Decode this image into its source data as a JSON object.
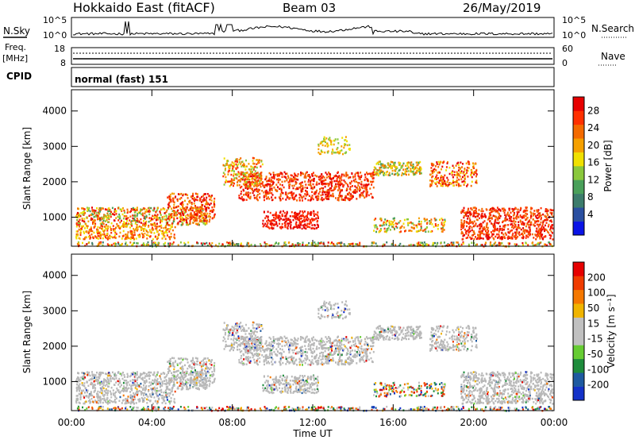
{
  "header": {
    "radar": "Hokkaido East (fitACF)",
    "beam": "Beam 03",
    "date": "26/May/2019"
  },
  "noise_panel": {
    "left_label": "N.Sky",
    "right_label": "N.Search",
    "left_ticks": [
      "10^5",
      "10^0"
    ],
    "right_ticks": [
      "10^5",
      "10^0"
    ]
  },
  "freq_panel": {
    "left_label_1": "Freq.",
    "left_label_2": "[MHz]",
    "right_label": "Nave",
    "left_ticks": [
      "18",
      "8"
    ],
    "right_ticks": [
      "60",
      "0"
    ]
  },
  "cpid_panel": {
    "label": "CPID",
    "program": "normal (fast) 151"
  },
  "colors": {
    "power_scale": [
      "#0a14e6",
      "#2a4fa0",
      "#3c7c6c",
      "#4aa05a",
      "#8ac83c",
      "#f0e000",
      "#f5a000",
      "#f46a00",
      "#ff3000",
      "#e60000"
    ],
    "velocity_scale": [
      "#1432c8",
      "#1e5aa0",
      "#1e8c3c",
      "#66cc33",
      "#c0c0c0",
      "#c0c0c0",
      "#f0b400",
      "#f57800",
      "#f03c00",
      "#e60000"
    ],
    "ground_scatter": "#b8b8b8"
  },
  "chart_data": [
    {
      "type": "heatmap",
      "name_hint": "power",
      "ylabel": "Slant Range [km]",
      "yticks": [
        "4000",
        "3000",
        "2000",
        "1000"
      ],
      "ylim": [
        180,
        4600
      ],
      "colorbar_label": "Power [dB]",
      "colorbar_ticks": [
        "28",
        "24",
        "20",
        "16",
        "12",
        "8",
        "4"
      ],
      "colorbar_range": [
        0,
        32
      ]
    },
    {
      "type": "heatmap",
      "name_hint": "velocity",
      "ylabel": "Slant Range [km]",
      "yticks": [
        "4000",
        "3000",
        "2000",
        "1000"
      ],
      "ylim": [
        180,
        4600
      ],
      "xlabel": "Time UT",
      "xticks": [
        "00:00",
        "04:00",
        "08:00",
        "12:00",
        "16:00",
        "20:00",
        "00:00"
      ],
      "colorbar_label": "Velocity [m s⁻¹]",
      "colorbar_ticks": [
        "200",
        "100",
        "50",
        "15",
        "-15",
        "-50",
        "-100",
        "-200"
      ]
    }
  ]
}
